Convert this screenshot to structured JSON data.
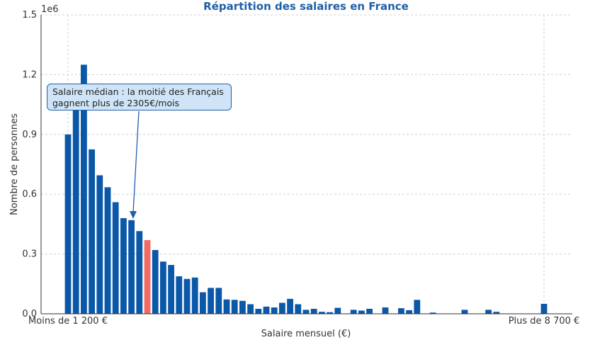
{
  "chart_data": {
    "type": "bar",
    "title": "Répartition des salaires en France",
    "xlabel": "Salaire mensuel (€)",
    "ylabel": "Nombre de personnes",
    "y_scale_label": "1e6",
    "ylim": [
      0,
      1500000
    ],
    "y_ticks": [
      "0.0",
      "0.3",
      "0.6",
      "0.9",
      "1.2",
      "1.5"
    ],
    "x_tick_labels": [
      "Moins de 1 200 €",
      "Plus de 8 700 €"
    ],
    "grid": true,
    "colors": {
      "bar": "#0b57a8",
      "highlight": "#f06b63",
      "grid": "#d0d0d0",
      "title": "#1f5fa8"
    },
    "highlight_index": 10,
    "values": [
      900000,
      1030000,
      1250000,
      825000,
      695000,
      635000,
      560000,
      480000,
      470000,
      415000,
      370000,
      320000,
      262000,
      245000,
      188000,
      175000,
      182000,
      108000,
      130000,
      130000,
      72000,
      70000,
      65000,
      48000,
      25000,
      36000,
      32000,
      55000,
      75000,
      48000,
      20000,
      25000,
      10000,
      8000,
      30000,
      0,
      20000,
      16000,
      25000,
      0,
      32000,
      0,
      28000,
      18000,
      70000,
      0,
      6000,
      0,
      0,
      0,
      20000,
      0,
      0,
      20000,
      10000,
      0,
      0,
      0,
      0,
      0,
      50000
    ]
  },
  "annotation": {
    "line1": "Salaire médian : la moitié des Français",
    "line2": "gagnent plus de 2305€/mois"
  }
}
